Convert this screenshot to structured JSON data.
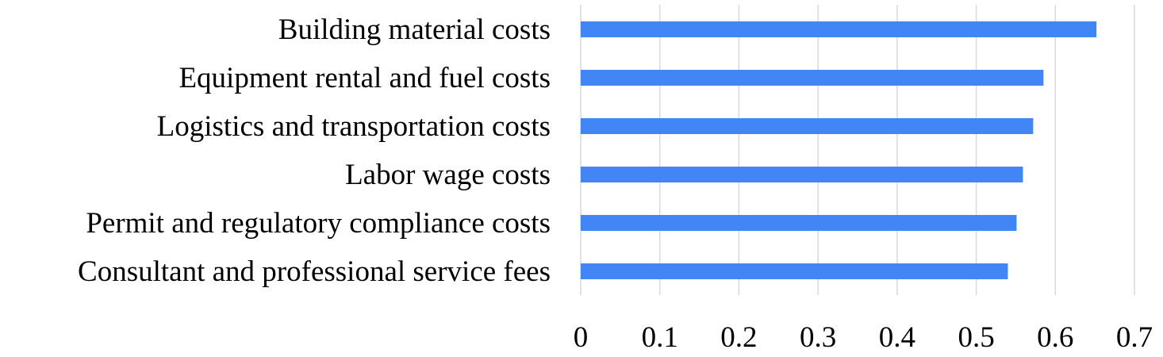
{
  "chart_data": {
    "type": "bar",
    "orientation": "horizontal",
    "title": "",
    "xlabel": "",
    "ylabel": "",
    "categories": [
      "Building material costs",
      "Equipment rental and fuel costs",
      "Logistics and transportation costs",
      "Labor wage costs",
      "Permit and regulatory compliance costs",
      "Consultant and professional service fees"
    ],
    "values": [
      0.652,
      0.585,
      0.572,
      0.559,
      0.551,
      0.54
    ],
    "xlim": [
      0,
      0.7
    ],
    "x_ticks": [
      0,
      0.1,
      0.2,
      0.3,
      0.4,
      0.5,
      0.6,
      0.7
    ],
    "x_tick_labels": [
      "0",
      "0.1",
      "0.2",
      "0.3",
      "0.4",
      "0.5",
      "0.6",
      "0.7"
    ],
    "grid": "vertical",
    "legend": "none",
    "bar_color": "#4285f4"
  }
}
